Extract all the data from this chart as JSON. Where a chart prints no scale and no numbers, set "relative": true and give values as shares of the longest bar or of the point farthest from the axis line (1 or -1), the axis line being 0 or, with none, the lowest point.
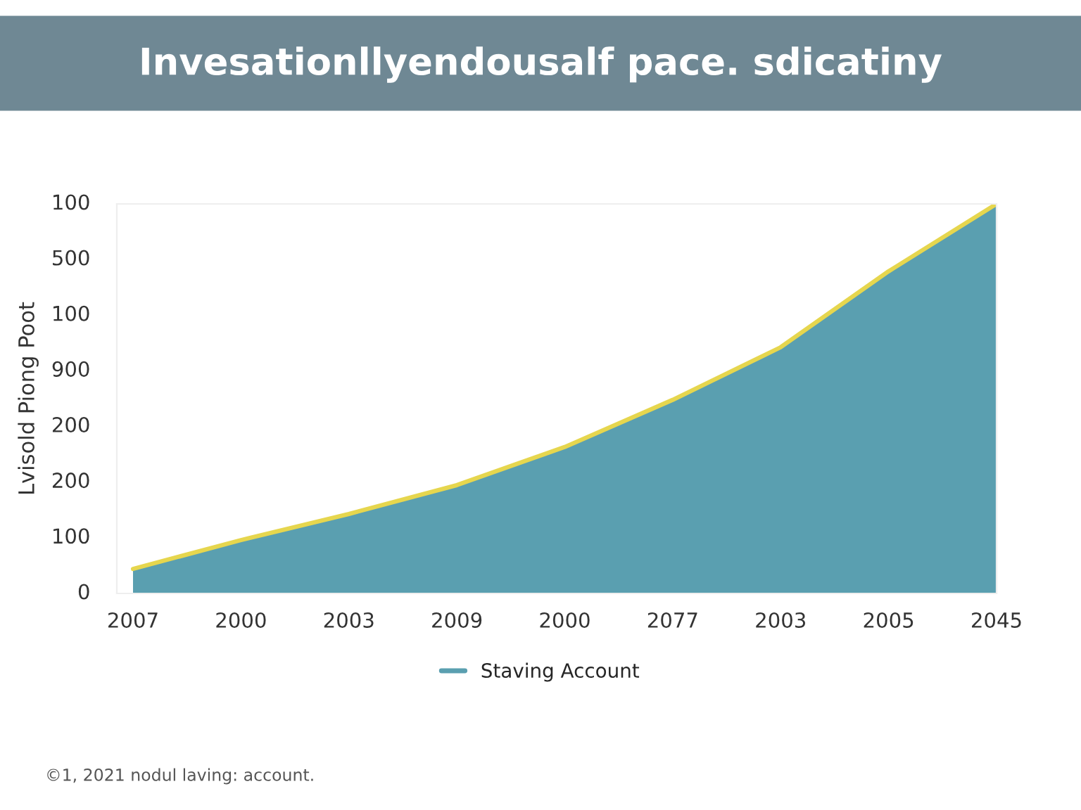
{
  "chart_data": {
    "type": "area",
    "title": "Invesationllyendousalf pace. sdicatiny",
    "ylabel": "Lvisold Piong Poot",
    "categories": [
      "2007",
      "2000",
      "2003",
      "2009",
      "2000",
      "2077",
      "2003",
      "2005",
      "2045"
    ],
    "series": [
      {
        "name": "Staving Account",
        "color": "#5a9fb0",
        "values": [
          0.063,
          0.137,
          0.204,
          0.278,
          0.376,
          0.497,
          0.632,
          0.827,
          1.0
        ]
      },
      {
        "type": "line",
        "color": "#e6d64e",
        "values": [
          0.063,
          0.137,
          0.204,
          0.278,
          0.376,
          0.497,
          0.632,
          0.827,
          1.0
        ]
      }
    ],
    "relative": true,
    "legend": "bottom",
    "grid": false,
    "annotations": [
      "0",
      "100",
      "200",
      "200",
      "900",
      "100",
      "500",
      "100",
      "©1, 2021 nodul laving: account."
    ]
  }
}
